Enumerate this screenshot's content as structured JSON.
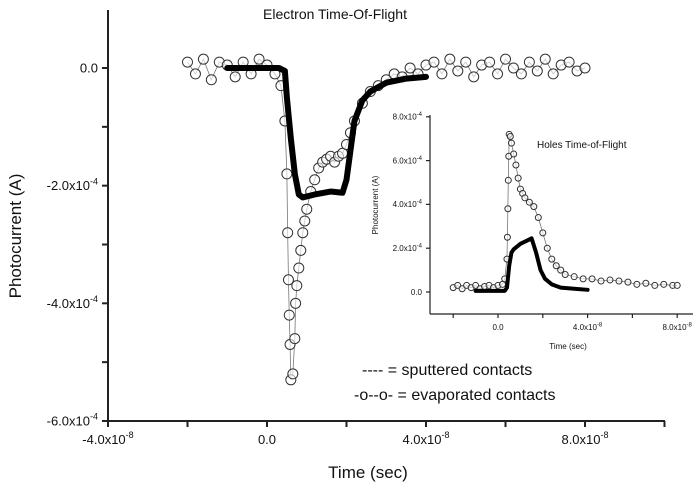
{
  "chart_data": [
    {
      "type": "scatter",
      "title": "Electron Time-Of-Flight",
      "xlabel": "Time (sec)",
      "ylabel": "Photocurrent (A)",
      "xlim": [
        -4e-08,
        1e-07
      ],
      "ylim": [
        -0.0006,
        0.0001
      ],
      "grid": false,
      "x_ticks": [
        {
          "value": -4e-08,
          "label": "-4.0x10",
          "exp": "-8"
        },
        {
          "value": 0,
          "label": "0.0",
          "exp": ""
        },
        {
          "value": 4e-08,
          "label": "4.0x10",
          "exp": "-8"
        },
        {
          "value": 8e-08,
          "label": "8.0x10",
          "exp": "-8"
        }
      ],
      "y_ticks": [
        {
          "value": 0,
          "label": "0.0",
          "exp": ""
        },
        {
          "value": -0.0002,
          "label": "-2.0x10",
          "exp": "-4"
        },
        {
          "value": -0.0004,
          "label": "-4.0x10",
          "exp": "-4"
        },
        {
          "value": -0.0006,
          "label": "-6.0x10",
          "exp": "-4"
        }
      ],
      "legend": {
        "placement": "bottom-right",
        "entries": [
          "---- = sputtered contacts",
          "-o--o- = evaporated contacts"
        ]
      },
      "series": [
        {
          "style": "thick-line",
          "color": "#000000",
          "points": [
            [
              -1e-08,
              0
            ],
            [
              3e-09,
              0
            ],
            [
              4.5e-09,
              -5e-06
            ],
            [
              5e-09,
              -5e-05
            ],
            [
              6e-09,
              -0.00012
            ],
            [
              7e-09,
              -0.00018
            ],
            [
              8e-09,
              -0.000215
            ],
            [
              9e-09,
              -0.00022
            ],
            [
              1.2e-08,
              -0.000215
            ],
            [
              1.6e-08,
              -0.00021
            ],
            [
              1.9e-08,
              -0.000212
            ],
            [
              2e-08,
              -0.00019
            ],
            [
              2.1e-08,
              -0.00014
            ],
            [
              2.2e-08,
              -9e-05
            ],
            [
              2.4e-08,
              -5.5e-05
            ],
            [
              2.6e-08,
              -4e-05
            ],
            [
              3e-08,
              -2.5e-05
            ],
            [
              3.5e-08,
              -1.8e-05
            ],
            [
              4e-08,
              -1.5e-05
            ]
          ]
        },
        {
          "style": "open-circles",
          "color": "#333333",
          "points": [
            [
              -2e-08,
              1e-05
            ],
            [
              -1.8e-08,
              -1e-05
            ],
            [
              -1.6e-08,
              1.5e-05
            ],
            [
              -1.4e-08,
              -2e-05
            ],
            [
              -1.2e-08,
              1e-05
            ],
            [
              -1e-08,
              5e-06
            ],
            [
              -8e-09,
              -1.5e-05
            ],
            [
              -6e-09,
              1e-05
            ],
            [
              -4e-09,
              -1e-05
            ],
            [
              -2e-09,
              1.5e-05
            ],
            [
              0,
              5e-06
            ],
            [
              2e-09,
              -1e-05
            ],
            [
              3.5e-09,
              -3e-05
            ],
            [
              4.5e-09,
              -9e-05
            ],
            [
              5e-09,
              -0.00018
            ],
            [
              5.2e-09,
              -0.00028
            ],
            [
              5.4e-09,
              -0.00036
            ],
            [
              5.6e-09,
              -0.00042
            ],
            [
              5.8e-09,
              -0.00047
            ],
            [
              6e-09,
              -0.00053
            ],
            [
              6.5e-09,
              -0.00052
            ],
            [
              7e-09,
              -0.00046
            ],
            [
              7.2e-09,
              -0.0004
            ],
            [
              7.5e-09,
              -0.00037
            ],
            [
              8e-09,
              -0.00034
            ],
            [
              8.5e-09,
              -0.00031
            ],
            [
              9e-09,
              -0.00028
            ],
            [
              9.5e-09,
              -0.00026
            ],
            [
              1e-08,
              -0.00024
            ],
            [
              1.1e-08,
              -0.00021
            ],
            [
              1.2e-08,
              -0.00019
            ],
            [
              1.3e-08,
              -0.00017
            ],
            [
              1.4e-08,
              -0.00016
            ],
            [
              1.5e-08,
              -0.000155
            ],
            [
              1.6e-08,
              -0.00015
            ],
            [
              1.7e-08,
              -0.00016
            ],
            [
              1.8e-08,
              -0.00015
            ],
            [
              1.9e-08,
              -0.000145
            ],
            [
              2e-08,
              -0.00013
            ],
            [
              2.1e-08,
              -0.00011
            ],
            [
              2.2e-08,
              -9e-05
            ],
            [
              2.4e-08,
              -6e-05
            ],
            [
              2.6e-08,
              -4e-05
            ],
            [
              2.8e-08,
              -3e-05
            ],
            [
              3e-08,
              -2e-05
            ],
            [
              3.2e-08,
              -1e-05
            ],
            [
              3.4e-08,
              -1.5e-05
            ],
            [
              3.6e-08,
              0
            ],
            [
              3.8e-08,
              -1e-05
            ],
            [
              4e-08,
              5e-06
            ],
            [
              4.2e-08,
              1e-05
            ],
            [
              4.4e-08,
              -1e-05
            ],
            [
              4.6e-08,
              1.5e-05
            ],
            [
              4.8e-08,
              -5e-06
            ],
            [
              5e-08,
              1e-05
            ],
            [
              5.2e-08,
              -1.5e-05
            ],
            [
              5.4e-08,
              5e-06
            ],
            [
              5.6e-08,
              1e-05
            ],
            [
              5.8e-08,
              -1e-05
            ],
            [
              6e-08,
              1.5e-05
            ],
            [
              6.2e-08,
              0
            ],
            [
              6.4e-08,
              -1e-05
            ],
            [
              6.6e-08,
              1e-05
            ],
            [
              6.8e-08,
              -5e-06
            ],
            [
              7e-08,
              1.5e-05
            ],
            [
              7.2e-08,
              -1e-05
            ],
            [
              7.4e-08,
              5e-06
            ],
            [
              7.6e-08,
              1e-05
            ],
            [
              7.8e-08,
              -5e-06
            ],
            [
              8e-08,
              0
            ]
          ]
        }
      ]
    },
    {
      "type": "scatter",
      "title": "Holes Time-of-Flight",
      "xlabel": "Time (sec)",
      "ylabel": "Photocurrent (A)",
      "xlim": [
        -3e-08,
        8.7e-08
      ],
      "ylim": [
        -0.0001,
        0.0008
      ],
      "grid": false,
      "x_ticks": [
        {
          "value": 0,
          "label": "0.0",
          "exp": ""
        },
        {
          "value": 4e-08,
          "label": "4.0x10",
          "exp": "-8"
        },
        {
          "value": 8e-08,
          "label": "8.0x10",
          "exp": "-8"
        }
      ],
      "y_ticks": [
        {
          "value": 0,
          "label": "0.0",
          "exp": ""
        },
        {
          "value": 0.0002,
          "label": "2.0x10",
          "exp": "-4"
        },
        {
          "value": 0.0004,
          "label": "4.0x10",
          "exp": "-4"
        },
        {
          "value": 0.0006,
          "label": "6.0x10",
          "exp": "-4"
        },
        {
          "value": 0.0008,
          "label": "8.0x10",
          "exp": "-4"
        }
      ],
      "series": [
        {
          "style": "thick-line",
          "color": "#000000",
          "points": [
            [
              -1e-08,
              5e-06
            ],
            [
              3e-09,
              5e-06
            ],
            [
              4e-09,
              2e-05
            ],
            [
              5e-09,
              0.00012
            ],
            [
              6e-09,
              0.00018
            ],
            [
              7e-09,
              0.000195
            ],
            [
              1e-08,
              0.00022
            ],
            [
              1.3e-08,
              0.000235
            ],
            [
              1.5e-08,
              0.000245
            ],
            [
              1.7e-08,
              0.00018
            ],
            [
              1.9e-08,
              0.0001
            ],
            [
              2.1e-08,
              6e-05
            ],
            [
              2.4e-08,
              3.5e-05
            ],
            [
              2.8e-08,
              2e-05
            ],
            [
              3.4e-08,
              1.5e-05
            ],
            [
              4e-08,
              1e-05
            ]
          ]
        },
        {
          "style": "open-circles",
          "color": "#333333",
          "points": [
            [
              -2e-08,
              2e-05
            ],
            [
              -1.8e-08,
              3e-05
            ],
            [
              -1.6e-08,
              1.5e-05
            ],
            [
              -1.4e-08,
              3e-05
            ],
            [
              -1.2e-08,
              2e-05
            ],
            [
              -1e-08,
              3e-05
            ],
            [
              -8e-09,
              1.5e-05
            ],
            [
              -6e-09,
              2.5e-05
            ],
            [
              -4e-09,
              3e-05
            ],
            [
              -2e-09,
              2e-05
            ],
            [
              0,
              3e-05
            ],
            [
              2e-09,
              3.5e-05
            ],
            [
              3e-09,
              6e-05
            ],
            [
              4e-09,
              0.00015
            ],
            [
              4.2e-09,
              0.00025
            ],
            [
              4.4e-09,
              0.00038
            ],
            [
              4.6e-09,
              0.00051
            ],
            [
              4.8e-09,
              0.00062
            ],
            [
              5e-09,
              0.00072
            ],
            [
              5.5e-09,
              0.00071
            ],
            [
              6e-09,
              0.00068
            ],
            [
              7e-09,
              0.00063
            ],
            [
              8e-09,
              0.00058
            ],
            [
              9e-09,
              0.00052
            ],
            [
              1e-08,
              0.00047
            ],
            [
              1.1e-08,
              0.00045
            ],
            [
              1.2e-08,
              0.00043
            ],
            [
              1.4e-08,
              0.00041
            ],
            [
              1.6e-08,
              0.00039
            ],
            [
              1.8e-08,
              0.00034
            ],
            [
              2e-08,
              0.00027
            ],
            [
              2.2e-08,
              0.0002
            ],
            [
              2.4e-08,
              0.00015
            ],
            [
              2.6e-08,
              0.00012
            ],
            [
              2.8e-08,
              0.0001
            ],
            [
              3e-08,
              8e-05
            ],
            [
              3.4e-08,
              7e-05
            ],
            [
              3.8e-08,
              6e-05
            ],
            [
              4.2e-08,
              6e-05
            ],
            [
              4.6e-08,
              5e-05
            ],
            [
              5e-08,
              5.5e-05
            ],
            [
              5.4e-08,
              5e-05
            ],
            [
              5.8e-08,
              4.5e-05
            ],
            [
              6.2e-08,
              3.5e-05
            ],
            [
              6.6e-08,
              4e-05
            ],
            [
              7e-08,
              3e-05
            ],
            [
              7.4e-08,
              3.5e-05
            ],
            [
              7.8e-08,
              3e-05
            ],
            [
              8e-08,
              3e-05
            ]
          ]
        }
      ]
    }
  ]
}
